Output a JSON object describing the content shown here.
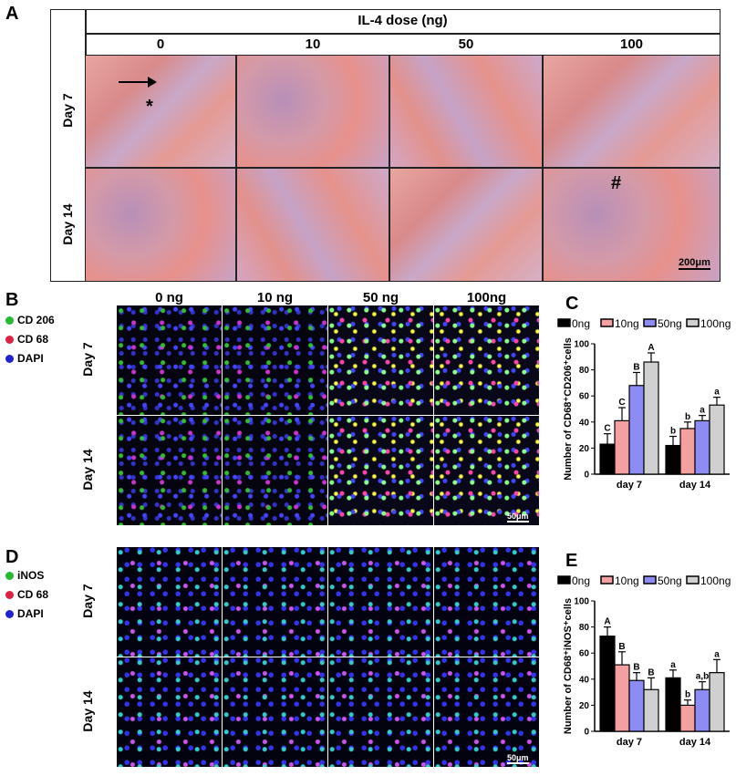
{
  "panels": {
    "a": "A",
    "b": "B",
    "c": "C",
    "d": "D",
    "e": "E"
  },
  "panel_a": {
    "header": "IL-4 dose (ng)",
    "doses": [
      "0",
      "10",
      "50",
      "100"
    ],
    "rows": [
      "Day 7",
      "Day 14"
    ],
    "marks": {
      "asterisk": "*",
      "hash": "#",
      "arrow": "arrow-icon"
    },
    "scale_bar": "200μm"
  },
  "panel_b": {
    "legend": [
      {
        "label": "CD 206",
        "color": "#22bb33"
      },
      {
        "label": "CD 68",
        "color": "#dd2244"
      },
      {
        "label": "DAPI",
        "color": "#2222cc"
      }
    ],
    "columns": [
      "0 ng",
      "10 ng",
      "50 ng",
      "100ng"
    ],
    "rows": [
      "Day 7",
      "Day 14"
    ],
    "scale_bar": "50μm"
  },
  "panel_d": {
    "legend": [
      {
        "label": "iNOS",
        "color": "#22bb33"
      },
      {
        "label": "CD 68",
        "color": "#dd2244"
      },
      {
        "label": "DAPI",
        "color": "#2222cc"
      }
    ],
    "columns": [
      "0 ng",
      "10 ng",
      "50 ng",
      "100ng"
    ],
    "rows": [
      "Day 7",
      "Day 14"
    ],
    "scale_bar": "50μm"
  },
  "chart_data": [
    {
      "type": "bar",
      "ylabel": "Number of CD68⁺CD206⁺cells",
      "categories": [
        "day 7",
        "day 14"
      ],
      "ylim": [
        0,
        100
      ],
      "yticks": [
        0,
        20,
        40,
        60,
        80,
        100
      ],
      "legend_position": "top",
      "series": [
        {
          "name": "0ng",
          "color": "#000000",
          "values": [
            23,
            22
          ],
          "errors": [
            8,
            7
          ],
          "letters": [
            "C",
            "b"
          ]
        },
        {
          "name": "10ng",
          "color": "#f4a0a0",
          "values": [
            41,
            35
          ],
          "errors": [
            10,
            5
          ],
          "letters": [
            "C",
            "b"
          ]
        },
        {
          "name": "50ng",
          "color": "#8c8cf4",
          "values": [
            68,
            41
          ],
          "errors": [
            10,
            4
          ],
          "letters": [
            "B",
            "a"
          ]
        },
        {
          "name": "100ng",
          "color": "#d0d0d0",
          "values": [
            86,
            53
          ],
          "errors": [
            7,
            6
          ],
          "letters": [
            "A",
            "a"
          ]
        }
      ]
    },
    {
      "type": "bar",
      "ylabel": "Number of CD68⁺iNOS⁺cells",
      "categories": [
        "day 7",
        "day 14"
      ],
      "ylim": [
        0,
        100
      ],
      "yticks": [
        0,
        20,
        40,
        60,
        80,
        100
      ],
      "legend_position": "top",
      "series": [
        {
          "name": "0ng",
          "color": "#000000",
          "values": [
            73,
            41
          ],
          "errors": [
            7,
            6
          ],
          "letters": [
            "A",
            "a"
          ]
        },
        {
          "name": "10ng",
          "color": "#f4a0a0",
          "values": [
            51,
            20
          ],
          "errors": [
            10,
            4
          ],
          "letters": [
            "B",
            "b"
          ]
        },
        {
          "name": "50ng",
          "color": "#8c8cf4",
          "values": [
            39,
            32
          ],
          "errors": [
            6,
            6
          ],
          "letters": [
            "B",
            "a,b"
          ]
        },
        {
          "name": "100ng",
          "color": "#d0d0d0",
          "values": [
            32,
            45
          ],
          "errors": [
            9,
            10
          ],
          "letters": [
            "B",
            "a"
          ]
        }
      ]
    }
  ]
}
